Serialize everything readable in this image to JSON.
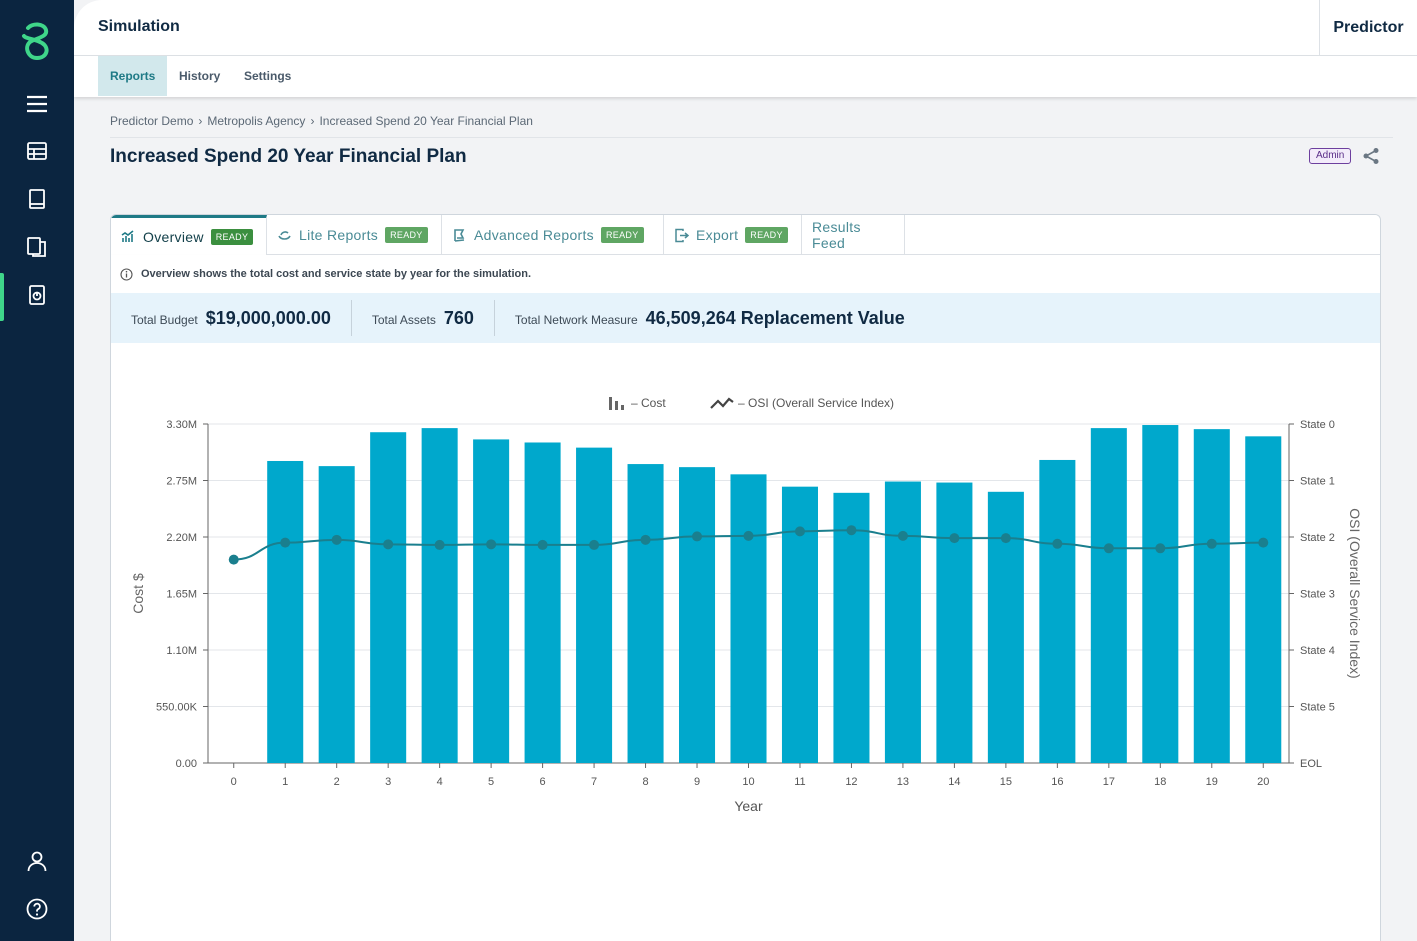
{
  "topbar": {
    "title": "Simulation",
    "product": "Predictor"
  },
  "subnav": {
    "tabs": [
      "Reports",
      "History",
      "Settings"
    ],
    "active": "Reports"
  },
  "breadcrumb": [
    "Predictor Demo",
    "Metropolis Agency",
    "Increased Spend 20 Year Financial Plan"
  ],
  "page": {
    "title": "Increased Spend 20 Year Financial Plan",
    "badge": "Admin"
  },
  "report_tabs": [
    {
      "label": "Overview",
      "status": "READY",
      "icon": "chart-icon"
    },
    {
      "label": "Lite Reports",
      "status": "READY",
      "icon": "leaf-icon"
    },
    {
      "label": "Advanced Reports",
      "status": "READY",
      "icon": "map-icon"
    },
    {
      "label": "Export",
      "status": "READY",
      "icon": "export-icon"
    },
    {
      "label": "Results Feed",
      "status": "",
      "icon": ""
    }
  ],
  "info": "Overview shows the total cost and service state by year for the simulation.",
  "stats": {
    "budget_label": "Total Budget",
    "budget_value": "$19,000,000.00",
    "assets_label": "Total Assets",
    "assets_value": "760",
    "network_label": "Total Network Measure",
    "network_value": "46,509,264 Replacement Value"
  },
  "colors": {
    "sidebar": "#0b2540",
    "accent": "#3fd68a",
    "bar": "#00a8cc",
    "line": "#1a7f8e",
    "ready": "#3b8f3f"
  },
  "chart_data": {
    "type": "bar+line",
    "legend": [
      {
        "name": "– Cost",
        "icon": "bar-chart-icon"
      },
      {
        "name": "– OSI (Overall Service Index)",
        "icon": "line-chart-icon"
      }
    ],
    "xlabel": "Year",
    "ylabel_left": "Cost $",
    "ylabel_right": "OSI (Overall Service Index)",
    "categories": [
      "0",
      "1",
      "2",
      "3",
      "4",
      "5",
      "6",
      "7",
      "8",
      "9",
      "10",
      "11",
      "12",
      "13",
      "14",
      "15",
      "16",
      "17",
      "18",
      "19",
      "20"
    ],
    "left_ticks": [
      "0.00",
      "550.00K",
      "1.10M",
      "1.65M",
      "2.20M",
      "2.75M",
      "3.30M"
    ],
    "right_ticks": [
      "EOL",
      "State 5",
      "State 4",
      "State 3",
      "State 2",
      "State 1",
      "State 0"
    ],
    "ylim_left": [
      0,
      3300000
    ],
    "ylim_right": [
      0,
      6
    ],
    "series": [
      {
        "name": "Cost",
        "kind": "bar",
        "values": [
          0,
          2940000,
          2890000,
          3220000,
          3260000,
          3150000,
          3120000,
          3070000,
          2910000,
          2880000,
          2810000,
          2690000,
          2630000,
          2740000,
          2730000,
          2640000,
          2950000,
          3260000,
          3290000,
          3250000,
          3180000
        ]
      },
      {
        "name": "OSI",
        "kind": "line",
        "values": [
          3.6,
          3.9,
          3.95,
          3.87,
          3.86,
          3.87,
          3.86,
          3.86,
          3.95,
          4.01,
          4.02,
          4.1,
          4.12,
          4.02,
          3.98,
          3.98,
          3.88,
          3.8,
          3.8,
          3.88,
          3.9
        ]
      }
    ],
    "grid": "horizontal"
  }
}
